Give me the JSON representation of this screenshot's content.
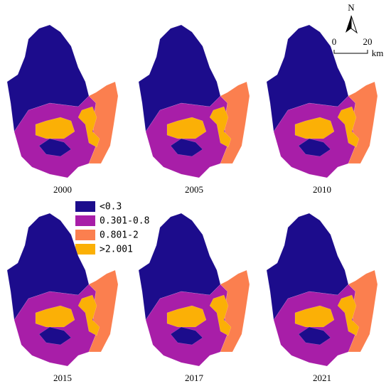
{
  "panels": [
    {
      "label": "2000"
    },
    {
      "label": "2005"
    },
    {
      "label": "2010"
    },
    {
      "label": "2015"
    },
    {
      "label": "2017"
    },
    {
      "label": "2021"
    }
  ],
  "legend": {
    "items": [
      {
        "label": "<0.3",
        "color": "#1c0c8c"
      },
      {
        "label": "0.301-0.8",
        "color": "#a81ea8"
      },
      {
        "label": "0.801-2",
        "color": "#fb7f4f"
      },
      {
        "label": ">2.001",
        "color": "#fbb006"
      }
    ]
  },
  "north_arrow": {
    "label": "N"
  },
  "scale_bar": {
    "ticks": [
      "0",
      "20"
    ],
    "unit": "km"
  }
}
